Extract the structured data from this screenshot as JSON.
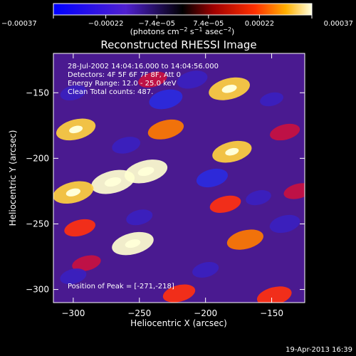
{
  "chart_data": {
    "type": "heatmap",
    "title": "Reconstructed RHESSI Image",
    "xlabel": "Heliocentric X (arcsec)",
    "ylabel": "Heliocentric Y (arcsec)",
    "xlim": [
      -315,
      -125
    ],
    "ylim": [
      -310,
      -120
    ],
    "xticks": [
      -300,
      -250,
      -200,
      -150
    ],
    "yticks": [
      -150,
      -200,
      -250,
      -300
    ],
    "xtick_labels": [
      "−300",
      "−250",
      "−200",
      "−150"
    ],
    "ytick_labels": [
      "−150",
      "−200",
      "−250",
      "−300"
    ],
    "colorbar": {
      "range": [
        -0.00037,
        0.00037
      ],
      "ticks": [
        -0.00037,
        -0.00022,
        -7.4e-05,
        7.4e-05,
        0.00022,
        0.00037
      ],
      "tick_labels": [
        "−0.00037",
        "−0.00022",
        "−7.4e−05",
        "7.4e−05",
        "0.00022",
        "0.00037"
      ],
      "label_prefix": "(photons cm",
      "label_exp1": "−2",
      "label_mid": " s",
      "label_exp2": "−1",
      "label_mid2": " asec",
      "label_exp3": "−2",
      "label_suffix": ")"
    },
    "annotations": [
      "28-Jul-2002 14:04:16.000 to 14:04:56.000",
      "Detectors: 4F 5F 6F 7F 8F, Att 0",
      "Energy Range: 12.0 - 25.0 keV",
      "Clean     Total counts: 487."
    ],
    "peak_label": "Position of Peak = [-271,-218]",
    "peak": [
      -271,
      -218
    ],
    "blobs": [
      {
        "x": -182,
        "y": -147,
        "v": 0.00033
      },
      {
        "x": -298,
        "y": -178,
        "v": 0.0003
      },
      {
        "x": -245,
        "y": -210,
        "v": 0.00036
      },
      {
        "x": -270,
        "y": -218,
        "v": 0.00037
      },
      {
        "x": -300,
        "y": -226,
        "v": 0.00032
      },
      {
        "x": -180,
        "y": -195,
        "v": 0.0003
      },
      {
        "x": -255,
        "y": -265,
        "v": 0.00034
      },
      {
        "x": -170,
        "y": -262,
        "v": 0.00025
      },
      {
        "x": -295,
        "y": -253,
        "v": 0.00016
      },
      {
        "x": -230,
        "y": -178,
        "v": 0.00024
      },
      {
        "x": -185,
        "y": -235,
        "v": 0.00016
      },
      {
        "x": -140,
        "y": -180,
        "v": 0.00014
      },
      {
        "x": -220,
        "y": -303,
        "v": 0.00018
      },
      {
        "x": -148,
        "y": -305,
        "v": 0.00022
      },
      {
        "x": -240,
        "y": -140,
        "v": 0.00012
      },
      {
        "x": -290,
        "y": -280,
        "v": 0.00012
      },
      {
        "x": -130,
        "y": -225,
        "v": 0.00012
      },
      {
        "x": -230,
        "y": -155,
        "v": -0.0003
      },
      {
        "x": -210,
        "y": -140,
        "v": -0.00024
      },
      {
        "x": -195,
        "y": -215,
        "v": -0.00026
      },
      {
        "x": -260,
        "y": -190,
        "v": -0.0002
      },
      {
        "x": -300,
        "y": -150,
        "v": -0.00015
      },
      {
        "x": -140,
        "y": -250,
        "v": -0.00024
      },
      {
        "x": -250,
        "y": -245,
        "v": -0.00016
      },
      {
        "x": -200,
        "y": -285,
        "v": -0.00016
      },
      {
        "x": -300,
        "y": -290,
        "v": -0.00016
      },
      {
        "x": -160,
        "y": -230,
        "v": -0.00014
      },
      {
        "x": -150,
        "y": -155,
        "v": -0.0001
      }
    ]
  },
  "footer": {
    "date": "19-Apr-2013 16:39"
  }
}
